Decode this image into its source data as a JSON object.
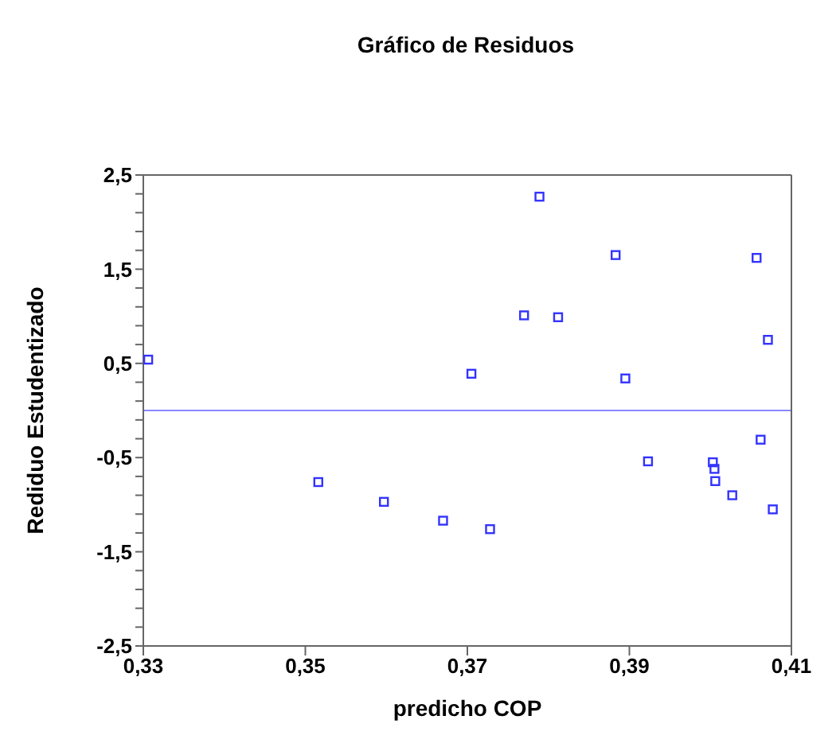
{
  "chart_data": {
    "type": "scatter",
    "title": "Gráfico de Residuos",
    "xlabel": "predicho COP",
    "ylabel": "Rediduo Estudentizado",
    "x": [
      0.3306,
      0.3516,
      0.3597,
      0.367,
      0.3728,
      0.3705,
      0.377,
      0.3789,
      0.3812,
      0.3883,
      0.3895,
      0.3923,
      0.4003,
      0.4005,
      0.4006,
      0.4027,
      0.4057,
      0.4062,
      0.4071,
      0.4077
    ],
    "series": [
      {
        "color": "#3333ff",
        "values": [
          0.54,
          -0.76,
          -0.97,
          -1.17,
          -1.26,
          0.39,
          1.01,
          2.27,
          0.99,
          1.65,
          0.34,
          -0.54,
          -0.55,
          -0.62,
          -0.75,
          -0.9,
          1.62,
          -0.31,
          0.75,
          -1.05
        ]
      }
    ],
    "marker": "square",
    "xlim": [
      0.33,
      0.41
    ],
    "xticks": [
      {
        "value": 0.33,
        "label": "0,33"
      },
      {
        "value": 0.35,
        "label": "0,35"
      },
      {
        "value": 0.37,
        "label": "0,37"
      },
      {
        "value": 0.39,
        "label": "0,39"
      },
      {
        "value": 0.41,
        "label": "0,41"
      }
    ],
    "ylim": [
      -2.5,
      2.5
    ],
    "yticks": [
      {
        "value": -2.5,
        "label": "-2,5"
      },
      {
        "value": -2.3,
        "label": null
      },
      {
        "value": -2.1,
        "label": null
      },
      {
        "value": -1.9,
        "label": null
      },
      {
        "value": -1.7,
        "label": null
      },
      {
        "value": -1.5,
        "label": "-1,5"
      },
      {
        "value": -1.3,
        "label": null
      },
      {
        "value": -1.1,
        "label": null
      },
      {
        "value": -0.9,
        "label": null
      },
      {
        "value": -0.7,
        "label": null
      },
      {
        "value": -0.5,
        "label": "-0,5"
      },
      {
        "value": -0.3,
        "label": null
      },
      {
        "value": -0.1,
        "label": null
      },
      {
        "value": 0.1,
        "label": null
      },
      {
        "value": 0.3,
        "label": null
      },
      {
        "value": 0.5,
        "label": "0,5"
      },
      {
        "value": 0.7,
        "label": null
      },
      {
        "value": 0.9,
        "label": null
      },
      {
        "value": 1.1,
        "label": null
      },
      {
        "value": 1.3,
        "label": null
      },
      {
        "value": 1.5,
        "label": "1,5"
      },
      {
        "value": 1.7,
        "label": null
      },
      {
        "value": 1.9,
        "label": null
      },
      {
        "value": 2.1,
        "label": null
      },
      {
        "value": 2.3,
        "label": null
      },
      {
        "value": 2.5,
        "label": "2,5"
      }
    ],
    "ref_lines": [
      {
        "axis": "y",
        "value": 0,
        "label": null,
        "color": "#8888ff"
      }
    ],
    "grid": false,
    "legend": false
  }
}
